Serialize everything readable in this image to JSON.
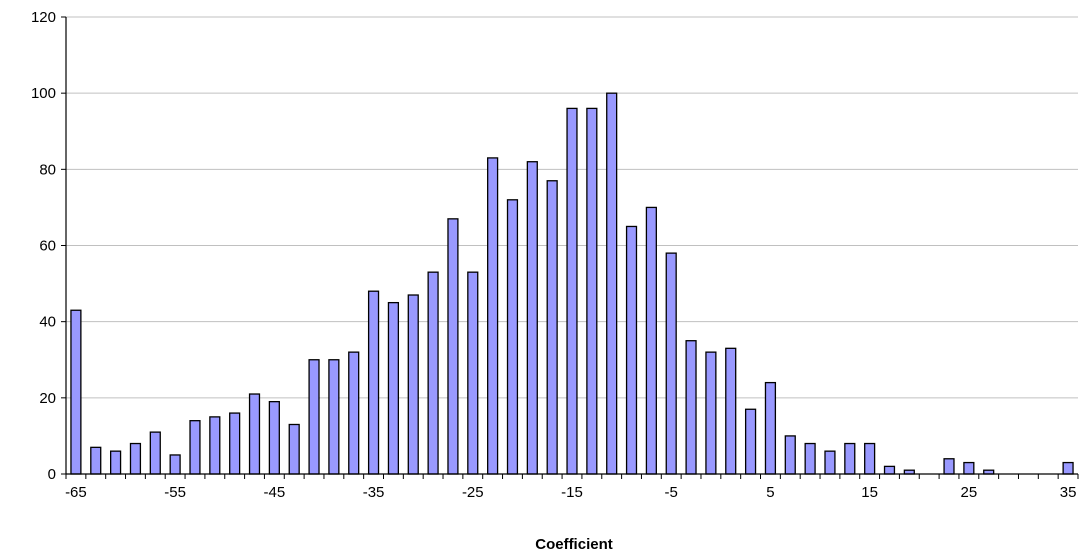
{
  "chart_data": {
    "type": "bar",
    "title": "",
    "xlabel": "Coefficient",
    "ylabel": "",
    "categories": [
      -65,
      -63,
      -61,
      -59,
      -57,
      -55,
      -53,
      -51,
      -49,
      -47,
      -45,
      -43,
      -41,
      -39,
      -37,
      -35,
      -33,
      -31,
      -29,
      -27,
      -25,
      -23,
      -21,
      -19,
      -17,
      -15,
      -13,
      -11,
      -9,
      -7,
      -5,
      -3,
      -1,
      1,
      3,
      5,
      7,
      9,
      11,
      13,
      15,
      17,
      19,
      21,
      23,
      25,
      27,
      29,
      31,
      33,
      35
    ],
    "values": [
      43,
      7,
      6,
      8,
      11,
      5,
      14,
      15,
      16,
      21,
      19,
      13,
      30,
      30,
      32,
      48,
      45,
      47,
      53,
      67,
      53,
      83,
      72,
      82,
      77,
      96,
      96,
      100,
      65,
      70,
      58,
      35,
      32,
      33,
      17,
      24,
      10,
      8,
      6,
      8,
      8,
      2,
      1,
      0,
      4,
      3,
      1,
      0,
      0,
      0,
      3
    ],
    "x_tick_labels": [
      "-65",
      "-55",
      "-45",
      "-35",
      "-25",
      "-15",
      "-5",
      "5",
      "15",
      "25",
      "35"
    ],
    "y_tick_labels": [
      "0",
      "20",
      "40",
      "60",
      "80",
      "100",
      "120"
    ],
    "ylim": [
      0,
      120
    ],
    "grid": true,
    "legend": "none",
    "colors": {
      "bar_fill": "#9999ff",
      "bar_stroke": "#000000",
      "grid": "#c0c0c0"
    }
  }
}
